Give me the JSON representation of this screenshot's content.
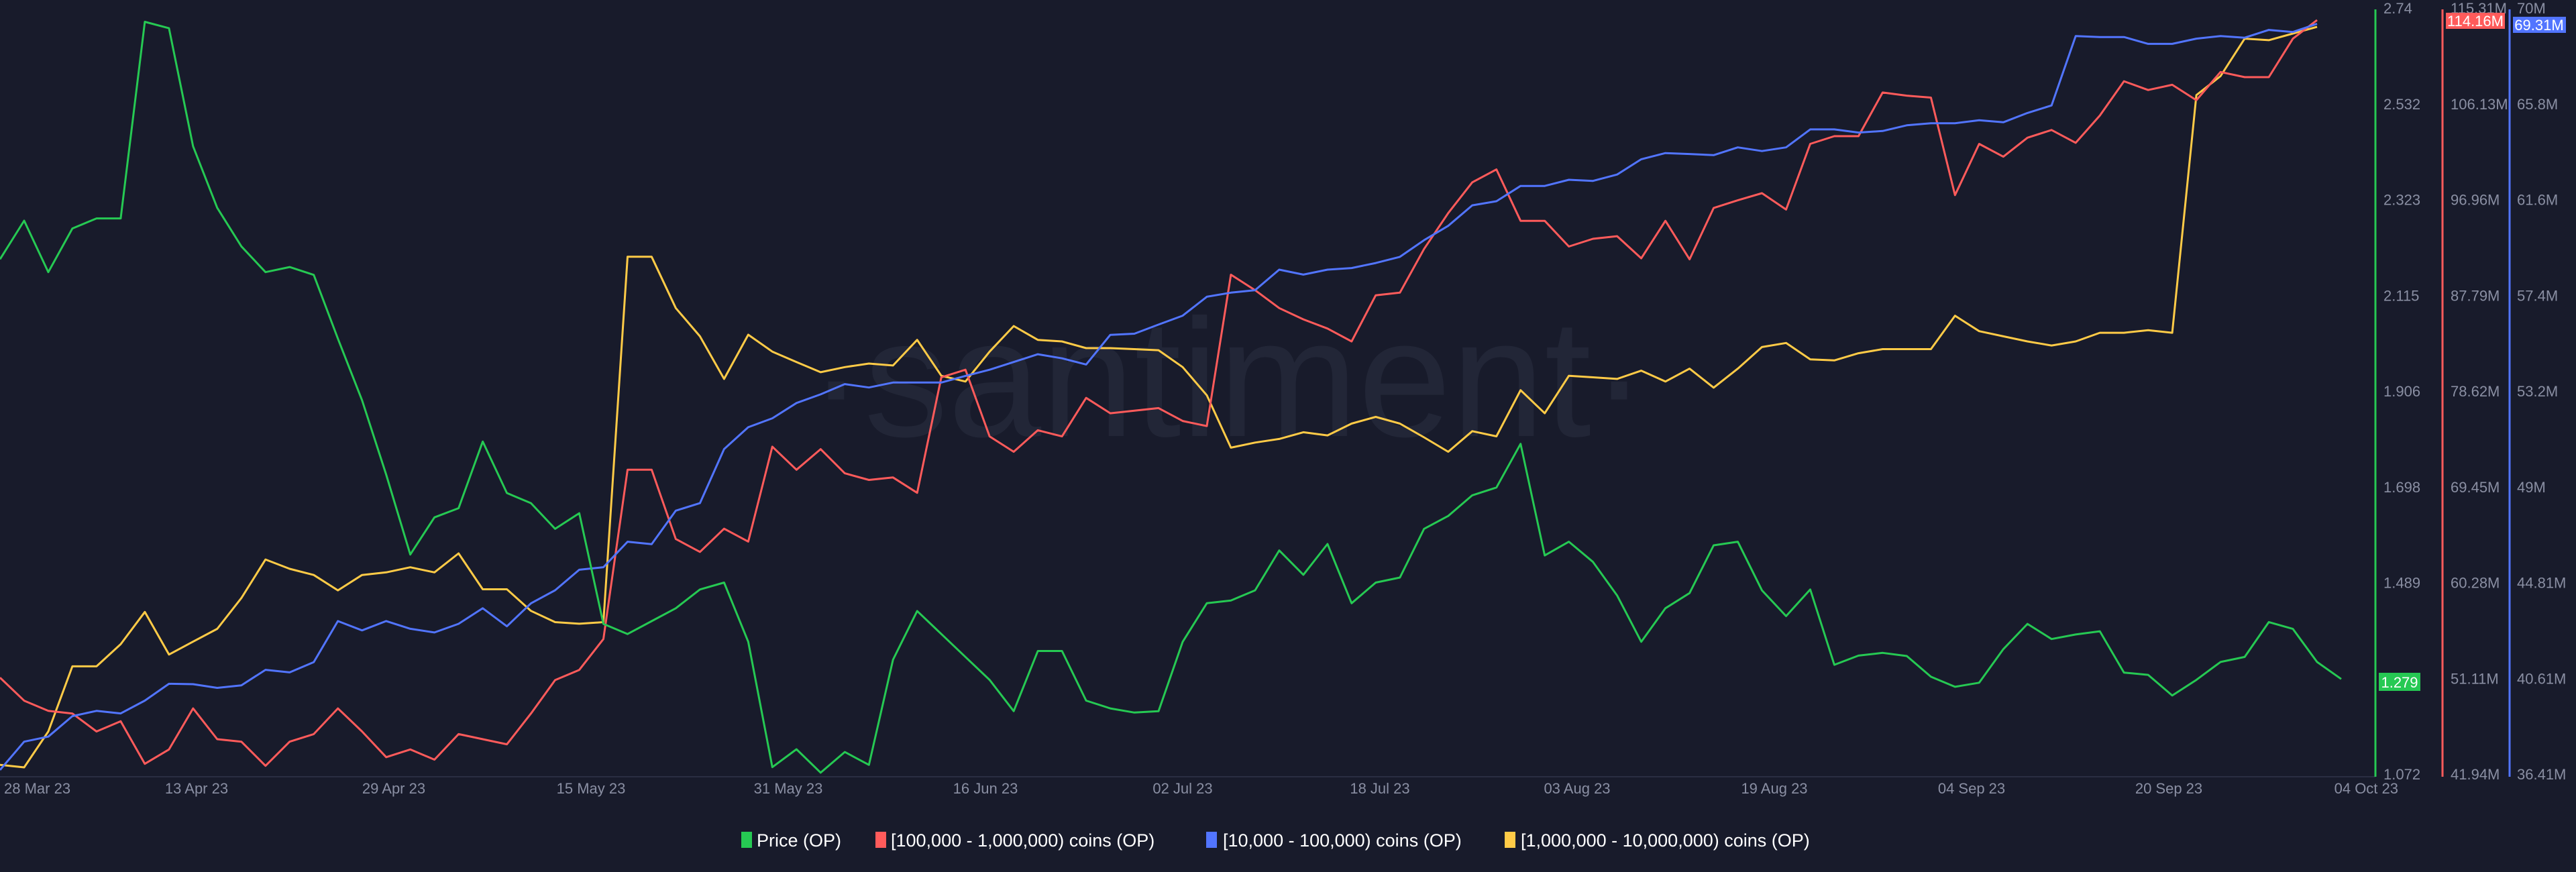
{
  "chart_data": {
    "type": "line",
    "watermark": "·santiment·",
    "x_ticks": [
      "28 Mar 23",
      "13 Apr 23",
      "29 Apr 23",
      "15 May 23",
      "31 May 23",
      "16 Jun 23",
      "02 Jul 23",
      "18 Jul 23",
      "03 Aug 23",
      "19 Aug 23",
      "04 Sep 23",
      "20 Sep 23",
      "04 Oct 23"
    ],
    "x_range": [
      "28 Mar 23",
      "04 Oct 23"
    ],
    "grid": false,
    "legend_position": "bottom-center",
    "axes": {
      "price": {
        "ylim": [
          1.072,
          2.74
        ],
        "ticks": [
          "2.74",
          "2.532",
          "2.323",
          "2.115",
          "1.906",
          "1.698",
          "1.489",
          "1.279",
          "1.072"
        ],
        "tick_labels": [
          "2.74",
          "2.532",
          "2.323",
          "2.115",
          "1.906",
          "1.698",
          "1.489",
          "1.072"
        ],
        "last_value": "1.279",
        "color": "#26c953"
      },
      "red": {
        "ylim": [
          41.94,
          115.31
        ],
        "tick_labels": [
          "115.31M",
          "106.13M",
          "96.96M",
          "87.79M",
          "78.62M",
          "69.45M",
          "60.28M",
          "51.11M",
          "41.94M"
        ],
        "last_value": "114.16M",
        "color": "#ff5b5b"
      },
      "blue": {
        "ylim": [
          36.41,
          70
        ],
        "tick_labels": [
          "70M",
          "65.8M",
          "61.6M",
          "57.4M",
          "53.2M",
          "49M",
          "44.81M",
          "40.61M",
          "36.41M"
        ],
        "last_value": "69.31M",
        "color": "#5275ff"
      }
    },
    "series": [
      {
        "name": "Price (OP)",
        "axis": "price",
        "color": "#26c953",
        "values": [
          2.193,
          2.277,
          2.165,
          2.26,
          2.282,
          2.282,
          2.71,
          2.696,
          2.439,
          2.305,
          2.221,
          2.165,
          2.176,
          2.159,
          2.02,
          1.886,
          1.724,
          1.55,
          1.631,
          1.651,
          1.796,
          1.684,
          1.662,
          1.606,
          1.64,
          1.399,
          1.377,
          1.405,
          1.433,
          1.474,
          1.489,
          1.36,
          1.087,
          1.126,
          1.075,
          1.12,
          1.092,
          1.321,
          1.427,
          1.377,
          1.327,
          1.277,
          1.209,
          1.34,
          1.34,
          1.232,
          1.215,
          1.206,
          1.209,
          1.36,
          1.444,
          1.45,
          1.472,
          1.559,
          1.506,
          1.573,
          1.444,
          1.489,
          1.5,
          1.606,
          1.634,
          1.679,
          1.696,
          1.791,
          1.548,
          1.578,
          1.534,
          1.461,
          1.36,
          1.433,
          1.466,
          1.57,
          1.578,
          1.472,
          1.416,
          1.474,
          1.31,
          1.33,
          1.336,
          1.329,
          1.284,
          1.262,
          1.271,
          1.344,
          1.399,
          1.366,
          1.376,
          1.383,
          1.293,
          1.288,
          1.243,
          1.277,
          1.316,
          1.327,
          1.403,
          1.388,
          1.316,
          1.279
        ]
      },
      {
        "name": "[100,000  - 1,000,000) coins (OP)",
        "axis": "red",
        "color": "#ff5b5b",
        "values": [
          51.18,
          48.97,
          47.99,
          47.74,
          46.02,
          47.0,
          42.92,
          44.3,
          48.23,
          45.28,
          45.04,
          42.73,
          45.04,
          45.77,
          48.23,
          46.02,
          43.56,
          44.3,
          43.32,
          45.77,
          45.28,
          44.79,
          47.74,
          50.94,
          51.92,
          54.87,
          71.09,
          71.09,
          64.45,
          63.22,
          65.44,
          64.21,
          73.3,
          71.09,
          73.06,
          70.75,
          70.11,
          70.35,
          68.88,
          79.94,
          80.67,
          74.28,
          72.81,
          74.87,
          74.28,
          77.97,
          76.5,
          76.74,
          76.99,
          75.76,
          75.27,
          89.77,
          88.29,
          86.57,
          85.49,
          84.61,
          83.38,
          87.8,
          88.05,
          92.23,
          95.67,
          98.62,
          99.85,
          94.93,
          94.93,
          92.47,
          93.21,
          93.46,
          91.34,
          94.93,
          91.24,
          96.16,
          96.9,
          97.58,
          96.01,
          102.3,
          103.04,
          103.04,
          107.22,
          106.92,
          106.73,
          97.39,
          102.3,
          101.07,
          102.89,
          103.63,
          102.4,
          105.01,
          108.3,
          107.46,
          107.96,
          106.48,
          109.19,
          108.69,
          108.69,
          112.38,
          114.16
        ]
      },
      {
        "name": "[10,000 - 100,000) coins (OP)",
        "axis": "blue",
        "color": "#5275ff",
        "values": [
          36.59,
          37.83,
          38.05,
          38.95,
          39.18,
          39.07,
          39.63,
          40.37,
          40.35,
          40.19,
          40.3,
          40.98,
          40.87,
          41.32,
          43.12,
          42.71,
          43.12,
          42.78,
          42.62,
          43.0,
          43.68,
          42.89,
          43.9,
          44.47,
          45.37,
          45.48,
          46.6,
          46.49,
          47.96,
          48.29,
          50.66,
          51.62,
          52.01,
          52.68,
          53.06,
          53.51,
          53.36,
          53.58,
          53.58,
          53.58,
          53.87,
          54.14,
          54.48,
          54.82,
          54.64,
          54.37,
          55.67,
          55.72,
          56.12,
          56.51,
          57.34,
          57.52,
          57.63,
          58.53,
          58.31,
          58.53,
          58.6,
          58.82,
          59.09,
          59.82,
          60.45,
          61.35,
          61.53,
          62.2,
          62.2,
          62.47,
          62.42,
          62.7,
          63.37,
          63.64,
          63.6,
          63.55,
          63.89,
          63.73,
          63.89,
          64.68,
          64.68,
          64.54,
          64.61,
          64.86,
          64.95,
          64.95,
          65.08,
          64.99,
          65.4,
          65.73,
          68.77,
          68.73,
          68.73,
          68.43,
          68.43,
          68.66,
          68.77,
          68.7,
          69.04,
          68.95,
          69.31
        ]
      },
      {
        "name": "[1,000,000 - 10,000,000) coins (OP)",
        "axis": "hidden",
        "color": "#ffcb47",
        "values": [
          42.82,
          42.58,
          46.02,
          52.26,
          52.26,
          54.38,
          57.47,
          53.39,
          54.62,
          55.85,
          58.8,
          62.49,
          61.6,
          61.01,
          59.54,
          61.01,
          61.26,
          61.75,
          61.26,
          63.08,
          59.64,
          59.64,
          57.57,
          56.49,
          56.34,
          56.49,
          91.49,
          91.49,
          86.57,
          83.87,
          79.79,
          84.02,
          82.4,
          81.41,
          80.43,
          80.92,
          81.26,
          81.07,
          83.53,
          80.09,
          79.54,
          82.4,
          84.85,
          83.53,
          83.38,
          82.74,
          82.74,
          82.64,
          82.54,
          80.92,
          78.22,
          73.2,
          73.69,
          74.04,
          74.68,
          74.38,
          75.51,
          76.15,
          75.51,
          74.19,
          72.81,
          74.78,
          74.29,
          78.71,
          76.5,
          80.09,
          79.94,
          79.79,
          80.58,
          79.54,
          80.77,
          78.95,
          80.77,
          82.84,
          83.23,
          81.66,
          81.56,
          82.25,
          82.64,
          82.64,
          82.64,
          85.84,
          84.36,
          83.87,
          83.38,
          82.99,
          83.38,
          84.21,
          84.21,
          84.46,
          84.21,
          106.97,
          108.79,
          112.38,
          112.23,
          112.87,
          113.51
        ]
      }
    ]
  }
}
